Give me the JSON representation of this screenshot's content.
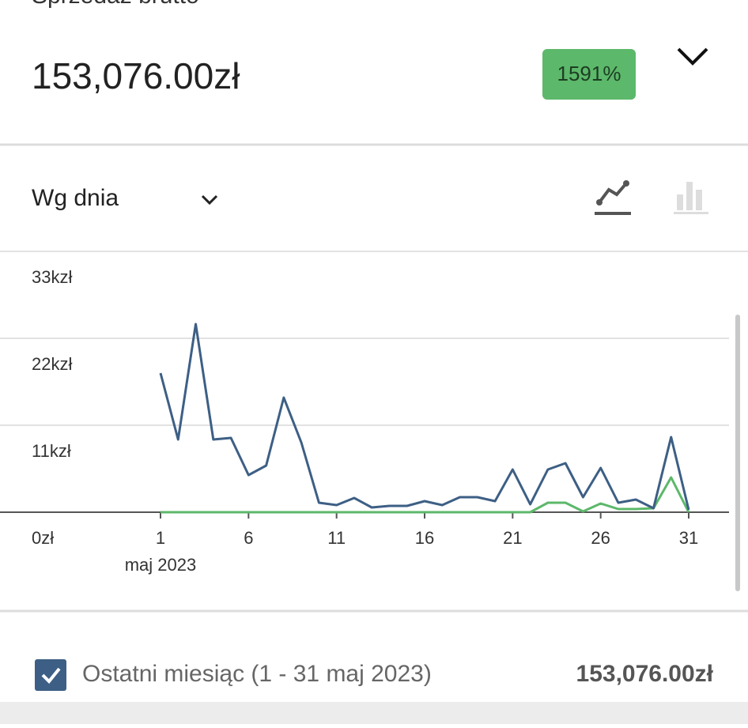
{
  "header": {
    "title": "Sprzedaż brutto",
    "value": "153,076.00zł",
    "badge": "1591%"
  },
  "period_selector": "Wg dnia",
  "footer": {
    "label": "Ostatni miesiąc (1 - 31 maj 2023)",
    "total": "153,076.00zł"
  },
  "chart_data": {
    "type": "line",
    "x": [
      1,
      2,
      3,
      4,
      5,
      6,
      7,
      8,
      9,
      10,
      11,
      12,
      13,
      14,
      15,
      16,
      17,
      18,
      19,
      20,
      21,
      22,
      23,
      24,
      25,
      26,
      27,
      28,
      29,
      30,
      31
    ],
    "xlim": [
      1,
      31
    ],
    "xticks": [
      1,
      6,
      11,
      16,
      21,
      26,
      31
    ],
    "x_annotation": "maj 2023",
    "ylim": [
      0,
      33000
    ],
    "yticks": [
      {
        "value": 0,
        "label": "0zł"
      },
      {
        "value": 11000,
        "label": "11kzł"
      },
      {
        "value": 22000,
        "label": "22kzł"
      },
      {
        "value": 33000,
        "label": "33kzł"
      }
    ],
    "grid": true,
    "series": [
      {
        "name": "Ostatni miesiąc (1 - 31 maj 2023)",
        "color": "#3d5f85",
        "values": [
          17600,
          9200,
          23800,
          9200,
          9400,
          4700,
          5900,
          14500,
          8800,
          1200,
          900,
          1800,
          600,
          800,
          800,
          1400,
          900,
          1900,
          1900,
          1400,
          5400,
          1000,
          5400,
          6200,
          1900,
          5600,
          1200,
          1600,
          500,
          9500,
          300
        ]
      },
      {
        "color": "#5cb86a",
        "values": [
          0,
          0,
          0,
          0,
          0,
          0,
          0,
          0,
          0,
          0,
          0,
          0,
          0,
          0,
          0,
          0,
          0,
          0,
          0,
          0,
          0,
          0,
          1200,
          1200,
          100,
          1100,
          400,
          400,
          500,
          4400,
          0
        ]
      }
    ]
  }
}
